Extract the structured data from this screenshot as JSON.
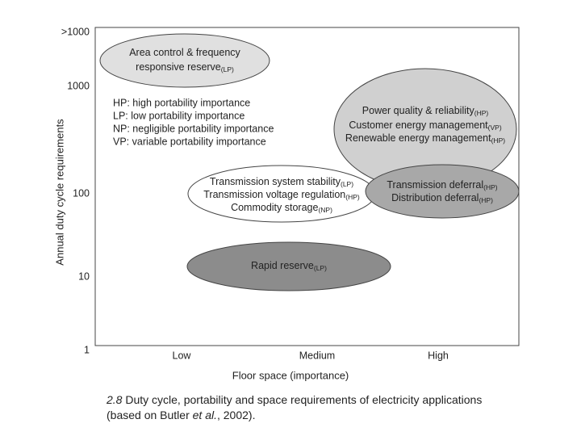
{
  "axes": {
    "y_label": "Annual duty cycle requirements",
    "x_label": "Floor space (importance)",
    "y_ticks": [
      ">1000",
      "1000",
      "100",
      "10",
      "1"
    ],
    "x_ticks": [
      "Low",
      "Medium",
      "High"
    ]
  },
  "legend": [
    "HP: high portability importance",
    "LP: low portability importance",
    "NP: negligible portability importance",
    "VP: variable portability importance"
  ],
  "ellipses": [
    {
      "lines": [
        {
          "text": "Area control & frequency"
        },
        {
          "text": "responsive reserve",
          "sub": "(LP)"
        }
      ]
    },
    {
      "lines": [
        {
          "text": "Power quality & reliability",
          "sub": "(HP)"
        },
        {
          "text": "Customer energy management",
          "sub": "(VP)"
        },
        {
          "text": "Renewable energy management",
          "sub": "(HP)"
        }
      ]
    },
    {
      "lines": [
        {
          "text": "Transmission system stability",
          "sub": "(LP)"
        },
        {
          "text": "Transmission voltage regulation",
          "sub": "(HP)"
        },
        {
          "text": "Commodity storage",
          "sub": "(NP)"
        }
      ]
    },
    {
      "lines": [
        {
          "text": "Transmission deferral",
          "sub": "(HP)"
        },
        {
          "text": "Distribution deferral",
          "sub": "(HP)"
        }
      ]
    },
    {
      "lines": [
        {
          "text": "Rapid reserve",
          "sub": "(LP)"
        }
      ]
    }
  ],
  "caption": {
    "number": "2.8",
    "text_before": "Duty cycle, portability and space requirements of electricity applications (based on Butler ",
    "italic": "et al.",
    "text_after": ", 2002)."
  }
}
